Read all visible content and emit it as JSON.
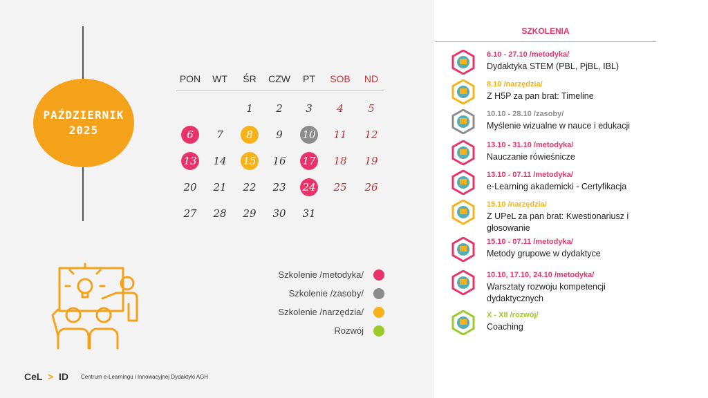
{
  "month_badge": {
    "line1": "PAŹDZIERNIK",
    "line2": "2025"
  },
  "calendar": {
    "day_names": [
      "PON",
      "WT",
      "ŚR",
      "CZW",
      "PT",
      "SOB",
      "ND"
    ],
    "weeks": [
      [
        "",
        "",
        "1",
        "2",
        "3",
        "4",
        "5"
      ],
      [
        "6",
        "7",
        "8",
        "9",
        "10",
        "11",
        "12"
      ],
      [
        "13",
        "14",
        "15",
        "16",
        "17",
        "18",
        "19"
      ],
      [
        "20",
        "21",
        "22",
        "23",
        "24",
        "25",
        "26"
      ],
      [
        "27",
        "28",
        "29",
        "30",
        "31",
        "",
        ""
      ]
    ],
    "highlights": {
      "6": "metodyka",
      "8": "narzedzia",
      "10": "zasoby",
      "13": "metodyka",
      "15": "narzedzia",
      "17": "metodyka",
      "24": "metodyka"
    }
  },
  "colors": {
    "metodyka": "#e8336a",
    "zasoby": "#8c8c8c",
    "narzedzia": "#f5b21b",
    "rozwoj": "#9dca2b",
    "orange": "#f5a21b"
  },
  "legend": [
    {
      "label": "Szkolenie /metodyka/",
      "color_key": "metodyka"
    },
    {
      "label": "Szkolenie /zasoby/",
      "color_key": "zasoby"
    },
    {
      "label": "Szkolenie /narzędzia/",
      "color_key": "narzedzia"
    },
    {
      "label": "Rozwój",
      "color_key": "rozwoj"
    }
  ],
  "footer": {
    "logo_left": "CeL",
    "logo_right": "ID",
    "text": "Centrum e-Learningu i Innowacyjnej Dydaktyki AGH"
  },
  "trainings": {
    "title": "SZKOLENIA",
    "items": [
      {
        "date": "6.10 - 27.10 /metodyka/",
        "title": "Dydaktyka STEM (PBL, PjBL, IBL)",
        "color_key": "metodyka",
        "icon": "lab-icon"
      },
      {
        "date": "8.10  /narzędzia/",
        "title": "Z H5P za pan brat: Timeline",
        "color_key": "narzedzia",
        "icon": "board-icon"
      },
      {
        "date": "10.10 - 28.10  /zasoby/",
        "title": "Myślenie wizualne w nauce i edukacji",
        "color_key": "zasoby",
        "icon": "idea-icon"
      },
      {
        "date": "13.10 - 31.10 /metodyka/",
        "title": "Nauczanie rówieśnicze",
        "color_key": "metodyka",
        "icon": "peers-icon"
      },
      {
        "date": "13.10 - 07.11 /metodyka/",
        "title": "e-Learning akademicki - Certyfikacja",
        "color_key": "metodyka",
        "icon": "certificate-icon"
      },
      {
        "date": "15.10  /narzędzia/",
        "title": "Z UPeL za pan brat: Kwestionariusz i głosowanie",
        "color_key": "narzedzia",
        "icon": "survey-icon"
      },
      {
        "date": "15.10 - 07.11  /metodyka/",
        "title": "Metody grupowe w dydaktyce",
        "color_key": "metodyka",
        "icon": "group-icon"
      },
      {
        "date": "10.10, 17.10, 24.10 /metodyka/",
        "title": "Warsztaty rozwoju kompetencji dydaktycznych",
        "color_key": "metodyka",
        "icon": "workshop-icon"
      },
      {
        "date": "X - XII /rozwój/",
        "title": "Coaching",
        "color_key": "rozwoj",
        "icon": "coaching-icon"
      }
    ]
  }
}
